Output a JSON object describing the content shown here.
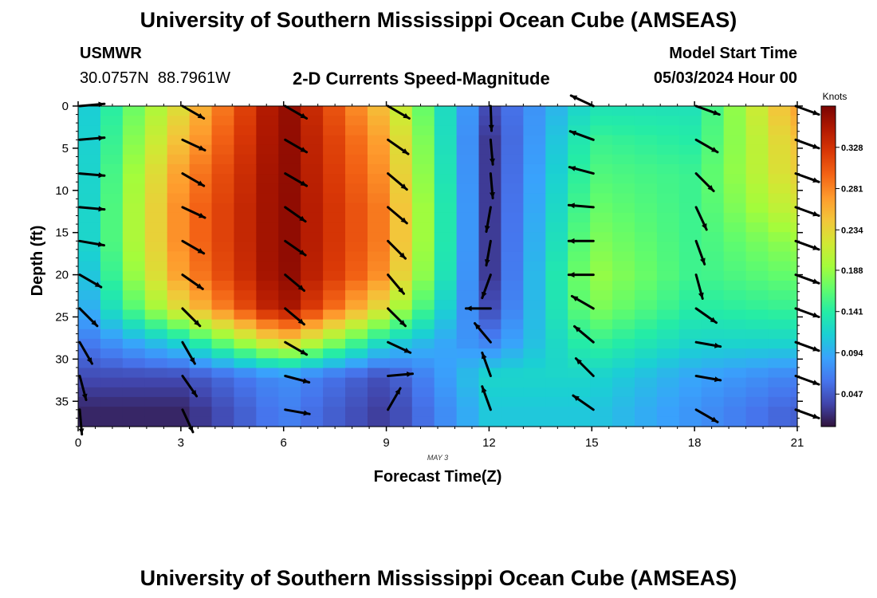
{
  "header": {
    "title": "University of Southern Mississippi Ocean Cube (AMSEAS)",
    "station_id": "USMWR",
    "station_coords": "30.0757N  88.7961W",
    "chart_subtitle": "2-D Currents Speed-Magnitude",
    "model_label": "Model Start Time",
    "model_time": "05/03/2024 Hour 00"
  },
  "footer": {
    "title": "University of Southern Mississippi Ocean Cube (AMSEAS)"
  },
  "chart_data": {
    "type": "heatmap",
    "title": "2-D Currents Speed-Magnitude",
    "xlabel": "Forecast Time(Z)",
    "ylabel": "Depth (ft)",
    "date_label": "MAY 3",
    "xlim": [
      0,
      21
    ],
    "ylim": [
      0,
      38
    ],
    "y_inverted": true,
    "x_ticks": [
      0,
      3,
      6,
      9,
      12,
      15,
      18,
      21
    ],
    "y_ticks": [
      0,
      5,
      10,
      15,
      20,
      25,
      30,
      35
    ],
    "colorbar": {
      "label": "Knots",
      "ticks": [
        0.047,
        0.094,
        0.141,
        0.188,
        0.234,
        0.281,
        0.328
      ],
      "range": [
        0.01,
        0.375
      ],
      "colormap": [
        "#30123b",
        "#4145ab",
        "#4675ed",
        "#39a2fc",
        "#1bcfd4",
        "#24eca6",
        "#61fc6c",
        "#a4fc3b",
        "#d1e834",
        "#f3c63a",
        "#fe9b2d",
        "#f36315",
        "#d93806",
        "#b11901",
        "#7a0402"
      ]
    },
    "times": [
      0,
      3,
      6,
      9,
      12,
      15,
      18,
      21
    ],
    "depths": [
      0,
      4,
      8,
      12,
      16,
      20,
      24,
      28,
      32,
      36
    ],
    "speed_knots": [
      [
        0.1,
        0.23,
        0.37,
        0.24,
        0.04,
        0.13,
        0.13,
        0.27
      ],
      [
        0.1,
        0.25,
        0.37,
        0.26,
        0.03,
        0.15,
        0.14,
        0.25
      ],
      [
        0.1,
        0.27,
        0.37,
        0.27,
        0.03,
        0.16,
        0.15,
        0.24
      ],
      [
        0.1,
        0.28,
        0.37,
        0.28,
        0.03,
        0.17,
        0.15,
        0.22
      ],
      [
        0.1,
        0.28,
        0.37,
        0.28,
        0.03,
        0.18,
        0.15,
        0.19
      ],
      [
        0.09,
        0.27,
        0.37,
        0.27,
        0.03,
        0.19,
        0.15,
        0.17
      ],
      [
        0.08,
        0.23,
        0.36,
        0.22,
        0.04,
        0.18,
        0.14,
        0.15
      ],
      [
        0.06,
        0.12,
        0.24,
        0.12,
        0.07,
        0.15,
        0.12,
        0.12
      ],
      [
        0.04,
        0.04,
        0.08,
        0.04,
        0.12,
        0.12,
        0.09,
        0.07
      ],
      [
        0.02,
        0.02,
        0.07,
        0.03,
        0.11,
        0.11,
        0.08,
        0.05
      ]
    ],
    "direction_deg": [
      [
        85,
        120,
        120,
        120,
        178,
        295,
        110,
        110
      ],
      [
        85,
        115,
        120,
        125,
        175,
        290,
        120,
        110
      ],
      [
        95,
        120,
        120,
        130,
        175,
        285,
        135,
        110
      ],
      [
        95,
        115,
        125,
        130,
        190,
        275,
        155,
        110
      ],
      [
        100,
        120,
        125,
        135,
        190,
        270,
        160,
        110
      ],
      [
        120,
        125,
        130,
        140,
        200,
        270,
        165,
        110
      ],
      [
        135,
        135,
        130,
        135,
        270,
        300,
        125,
        110
      ],
      [
        150,
        150,
        120,
        115,
        320,
        310,
        100,
        110
      ],
      [
        165,
        145,
        105,
        85,
        340,
        315,
        100,
        110
      ],
      [
        175,
        155,
        100,
        30,
        340,
        305,
        120,
        110
      ]
    ]
  }
}
